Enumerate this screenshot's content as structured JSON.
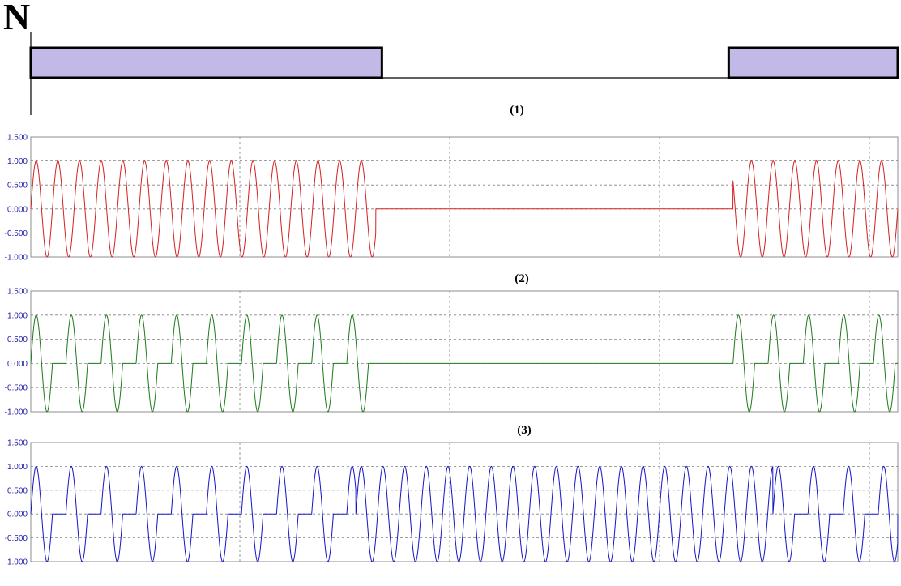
{
  "header": {
    "label": "N",
    "block_fill": "#c3b9e6",
    "blocks": [
      {
        "start": 0,
        "end": 0.405
      },
      {
        "start": 0.805,
        "end": 1.0
      }
    ]
  },
  "chart_data": [
    {
      "type": "line",
      "title": "(1)",
      "ylim": [
        -1.0,
        1.5
      ],
      "yticks": [
        "1.500",
        "1.000",
        "0.500",
        "0.000",
        "-0.500",
        "-1.000"
      ],
      "grid": true,
      "series": [
        {
          "color": "#d42020",
          "signal": "continuous_sine",
          "amplitude": 1.0,
          "cycles_per_unit": 40,
          "on_segments": [
            [
              0,
              0.398
            ],
            [
              0.81,
              1.0
            ]
          ]
        }
      ]
    },
    {
      "type": "line",
      "title": "(2)",
      "ylim": [
        -1.0,
        1.5
      ],
      "yticks": [
        "1.500",
        "1.000",
        "0.500",
        "0.000",
        "-0.500",
        "-1.000"
      ],
      "grid": true,
      "series": [
        {
          "color": "#1b7a1b",
          "signal": "sine_bursts",
          "amplitude": 1.0,
          "cycles_per_unit": 40,
          "burst_period": 0.0405,
          "burst_cycles": 1,
          "on_segments": [
            [
              0,
              0.39
            ],
            [
              0.81,
              1.0
            ]
          ]
        }
      ]
    },
    {
      "type": "line",
      "title": "(3)",
      "ylim": [
        -1.0,
        1.5
      ],
      "yticks": [
        "1.500",
        "1.000",
        "0.500",
        "0.000",
        "-0.500",
        "-1.000"
      ],
      "grid": true,
      "series": [
        {
          "color": "#1414c8",
          "signal": "mixed",
          "amplitude": 1.0,
          "cycles_per_unit": 40,
          "burst_period": 0.0405,
          "burst_cycles": 1,
          "burst_segments": [
            [
              0,
              0.375
            ],
            [
              0.856,
              1.0
            ]
          ],
          "continuous_segment": [
            0.375,
            0.856
          ]
        }
      ]
    }
  ]
}
